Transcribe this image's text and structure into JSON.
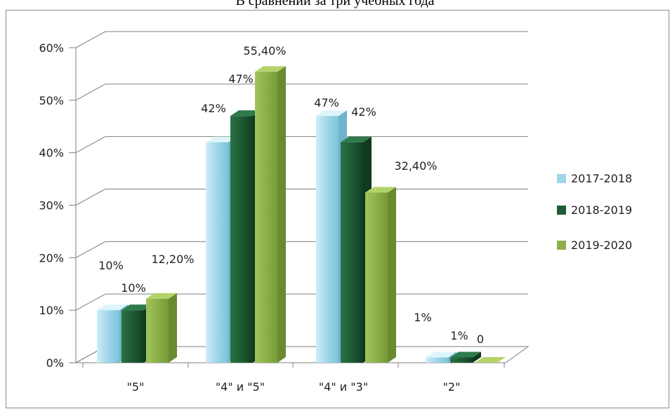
{
  "chart_title": "В сравнении за три учебных года",
  "chart_data": {
    "type": "bar",
    "title": "В сравнении за три учебных года",
    "categories": [
      "\"5\"",
      "\"4\" и \"5\"",
      "\"4\" и \"3\"",
      "\"2\""
    ],
    "series": [
      {
        "name": "2017-2018",
        "values": [
          10,
          42,
          47,
          1
        ],
        "labels": [
          "10%",
          "42%",
          "47%",
          "1%"
        ],
        "color": "#9fd6e8"
      },
      {
        "name": "2018-2019",
        "values": [
          10,
          47,
          42,
          1
        ],
        "labels": [
          "10%",
          "47%",
          "42%",
          "1%"
        ],
        "color": "#1e5b34"
      },
      {
        "name": "2019-2020",
        "values": [
          12.2,
          55.4,
          32.4,
          0
        ],
        "labels": [
          "12,20%",
          "55,40%",
          "32,40%",
          "0"
        ],
        "color": "#8db04a"
      }
    ],
    "y_ticks": [
      "0%",
      "10%",
      "20%",
      "30%",
      "40%",
      "50%",
      "60%"
    ],
    "ylim": [
      0,
      60
    ],
    "grid": true,
    "legend_position": "right",
    "xlabel": "",
    "ylabel": ""
  }
}
